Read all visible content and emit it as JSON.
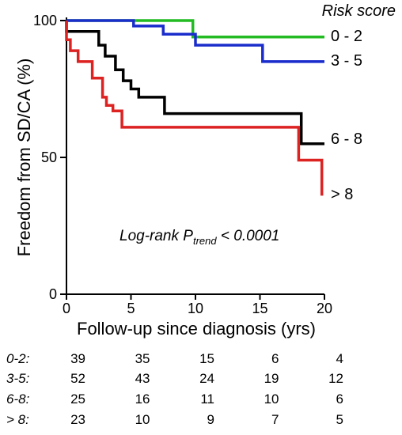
{
  "chart_data": {
    "type": "line",
    "step": true,
    "xlabel": "Follow-up since diagnosis (yrs)",
    "ylabel": "Freedom from SD/CA (%)",
    "xlim": [
      0,
      20
    ],
    "ylim": [
      0,
      100
    ],
    "xticks": [
      "0",
      "5",
      "10",
      "15",
      "20"
    ],
    "yticks": [
      "0",
      "50",
      "100"
    ],
    "legend_title": "Risk score",
    "annotation": {
      "prefix": "Log-rank P",
      "subscript": "trend",
      "suffix": " < 0.0001"
    },
    "series": [
      {
        "name": "0 - 2",
        "color": "#22bb22",
        "points": [
          [
            0,
            100
          ],
          [
            9.8,
            100
          ],
          [
            9.8,
            94
          ],
          [
            20,
            94
          ]
        ]
      },
      {
        "name": "3 - 5",
        "color": "#1a2dcc",
        "points": [
          [
            0,
            100
          ],
          [
            5.2,
            100
          ],
          [
            5.2,
            98
          ],
          [
            7.5,
            98
          ],
          [
            7.5,
            95
          ],
          [
            10,
            95
          ],
          [
            10,
            91
          ],
          [
            15.2,
            91
          ],
          [
            15.2,
            85
          ],
          [
            20,
            85
          ]
        ]
      },
      {
        "name": "6 - 8",
        "color": "#000000",
        "points": [
          [
            0,
            100
          ],
          [
            0,
            96
          ],
          [
            2.5,
            96
          ],
          [
            2.5,
            91
          ],
          [
            3,
            91
          ],
          [
            3,
            87
          ],
          [
            3.8,
            87
          ],
          [
            3.8,
            82
          ],
          [
            4.4,
            82
          ],
          [
            4.4,
            78
          ],
          [
            5,
            78
          ],
          [
            5,
            75
          ],
          [
            5.6,
            75
          ],
          [
            5.6,
            72
          ],
          [
            7.6,
            72
          ],
          [
            7.6,
            66
          ],
          [
            18.2,
            66
          ],
          [
            18.2,
            55
          ],
          [
            20,
            55
          ]
        ]
      },
      {
        "name": "> 8",
        "color": "#dd2222",
        "points": [
          [
            0,
            100
          ],
          [
            0,
            93
          ],
          [
            0.3,
            93
          ],
          [
            0.3,
            89
          ],
          [
            0.9,
            89
          ],
          [
            0.9,
            85
          ],
          [
            2,
            85
          ],
          [
            2,
            79
          ],
          [
            2.8,
            79
          ],
          [
            2.8,
            72
          ],
          [
            3.1,
            72
          ],
          [
            3.1,
            69
          ],
          [
            3.6,
            69
          ],
          [
            3.6,
            67
          ],
          [
            4.3,
            67
          ],
          [
            4.3,
            61
          ],
          [
            18,
            61
          ],
          [
            18,
            49
          ],
          [
            19.8,
            49
          ],
          [
            19.8,
            36
          ]
        ]
      }
    ],
    "risk_table": {
      "columns_x": [
        0,
        5,
        10,
        15,
        20
      ],
      "rows": [
        {
          "label": "0-2:",
          "values": [
            "39",
            "35",
            "15",
            "6",
            "4"
          ]
        },
        {
          "label": "3-5:",
          "values": [
            "52",
            "43",
            "24",
            "19",
            "12"
          ]
        },
        {
          "label": "6-8:",
          "values": [
            "25",
            "16",
            "11",
            "10",
            "6"
          ]
        },
        {
          "label": "> 8:",
          "values": [
            "23",
            "10",
            "9",
            "7",
            "5"
          ]
        }
      ]
    }
  }
}
